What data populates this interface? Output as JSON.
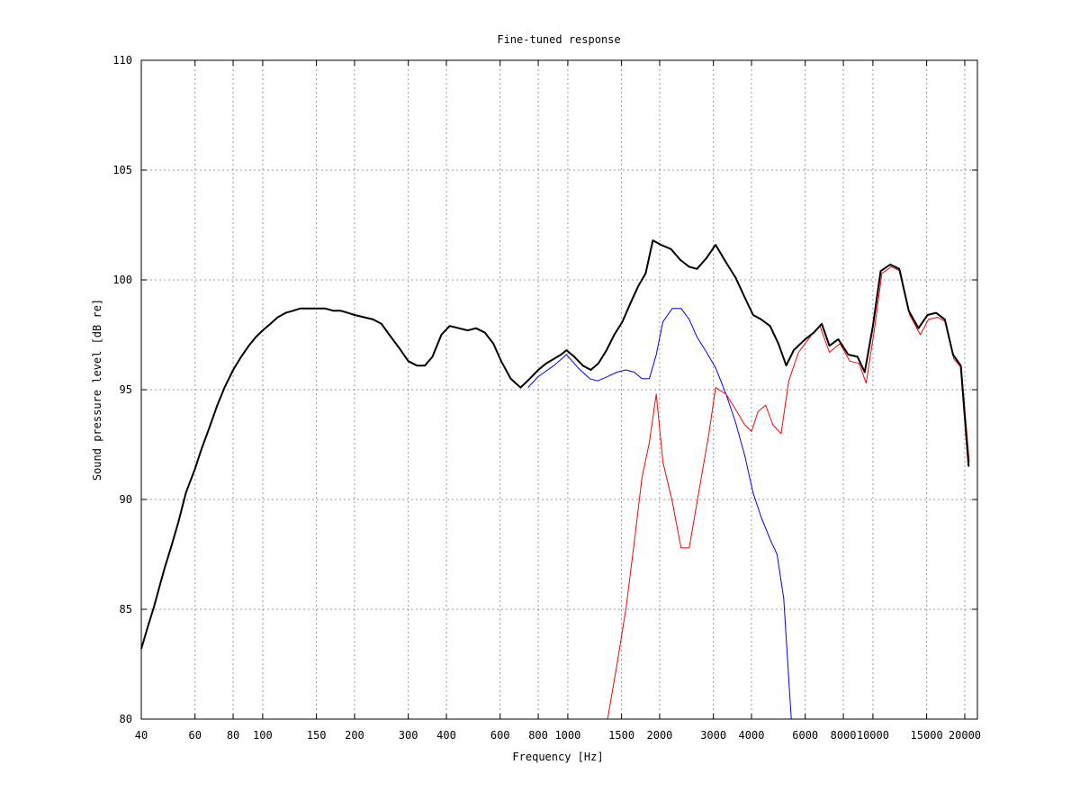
{
  "chart_data": {
    "type": "line",
    "title": "Fine-tuned response",
    "xlabel": "Frequency [Hz]",
    "ylabel": "Sound pressure level [dB re]",
    "xscale": "log",
    "xlim": [
      40,
      22000
    ],
    "ylim": [
      80,
      110
    ],
    "grid": true,
    "xticks": [
      40,
      60,
      80,
      100,
      150,
      200,
      300,
      400,
      600,
      800,
      1000,
      1500,
      2000,
      3000,
      4000,
      6000,
      8000,
      10000,
      15000,
      20000
    ],
    "xtick_labels": [
      "40",
      "60",
      "80",
      "100",
      "150",
      "200",
      "300",
      "400",
      "600",
      "800",
      "1000",
      "1500",
      "2000",
      "3000",
      "4000",
      "6000",
      "8000",
      "10000",
      "15000",
      "20000"
    ],
    "yticks": [
      80,
      85,
      90,
      95,
      100,
      105,
      110
    ],
    "ytick_labels": [
      "80",
      "85",
      "90",
      "95",
      "100",
      "105",
      "110"
    ],
    "series": [
      {
        "color": "#0000ff",
        "width": 1,
        "points": [
          [
            740,
            95.1
          ],
          [
            800,
            95.6
          ],
          [
            900,
            96.1
          ],
          [
            990,
            96.6
          ],
          [
            1080,
            96.0
          ],
          [
            1180,
            95.5
          ],
          [
            1250,
            95.4
          ],
          [
            1350,
            95.6
          ],
          [
            1450,
            95.8
          ],
          [
            1550,
            95.9
          ],
          [
            1650,
            95.8
          ],
          [
            1750,
            95.5
          ],
          [
            1850,
            95.5
          ],
          [
            1950,
            96.6
          ],
          [
            2050,
            98.1
          ],
          [
            2200,
            98.7
          ],
          [
            2350,
            98.7
          ],
          [
            2500,
            98.2
          ],
          [
            2650,
            97.4
          ],
          [
            2850,
            96.7
          ],
          [
            3050,
            96.0
          ],
          [
            3300,
            94.8
          ],
          [
            3550,
            93.5
          ],
          [
            3800,
            92.0
          ],
          [
            4050,
            90.3
          ],
          [
            4300,
            89.2
          ],
          [
            4600,
            88.2
          ],
          [
            4850,
            87.5
          ],
          [
            5100,
            85.5
          ],
          [
            5400,
            80.0
          ]
        ]
      },
      {
        "color": "#ff0000",
        "width": 1,
        "points": [
          [
            1350,
            80.0
          ],
          [
            1450,
            82.5
          ],
          [
            1550,
            85.0
          ],
          [
            1650,
            88.0
          ],
          [
            1750,
            91.0
          ],
          [
            1850,
            92.6
          ],
          [
            1950,
            94.8
          ],
          [
            2050,
            91.7
          ],
          [
            2200,
            89.9
          ],
          [
            2350,
            87.8
          ],
          [
            2500,
            87.8
          ],
          [
            2700,
            90.5
          ],
          [
            2900,
            93.0
          ],
          [
            3050,
            95.1
          ],
          [
            3300,
            94.8
          ],
          [
            3550,
            94.1
          ],
          [
            3800,
            93.4
          ],
          [
            4000,
            93.1
          ],
          [
            4200,
            94.0
          ],
          [
            4450,
            94.3
          ],
          [
            4700,
            93.4
          ],
          [
            5000,
            93.0
          ],
          [
            5300,
            95.4
          ],
          [
            5700,
            96.7
          ],
          [
            6300,
            97.5
          ],
          [
            6700,
            97.9
          ],
          [
            7200,
            96.7
          ],
          [
            7800,
            97.1
          ],
          [
            8400,
            96.3
          ],
          [
            9000,
            96.2
          ],
          [
            9500,
            95.3
          ],
          [
            10100,
            97.7
          ],
          [
            10700,
            100.3
          ],
          [
            11500,
            100.6
          ],
          [
            12300,
            100.4
          ],
          [
            13200,
            98.4
          ],
          [
            14300,
            97.5
          ],
          [
            15200,
            98.2
          ],
          [
            16300,
            98.3
          ],
          [
            17300,
            98.1
          ],
          [
            18400,
            96.4
          ],
          [
            19500,
            96.0
          ],
          [
            20700,
            91.7
          ]
        ]
      },
      {
        "color": "#000000",
        "width": 2,
        "points": [
          [
            40,
            83.2
          ],
          [
            42,
            84.2
          ],
          [
            44,
            85.1
          ],
          [
            46,
            86.1
          ],
          [
            48,
            87.0
          ],
          [
            50,
            87.8
          ],
          [
            53,
            89.0
          ],
          [
            56,
            90.3
          ],
          [
            60,
            91.4
          ],
          [
            63,
            92.3
          ],
          [
            67,
            93.3
          ],
          [
            71,
            94.3
          ],
          [
            75,
            95.1
          ],
          [
            80,
            95.9
          ],
          [
            85,
            96.5
          ],
          [
            90,
            97.0
          ],
          [
            95,
            97.4
          ],
          [
            100,
            97.7
          ],
          [
            106,
            98.0
          ],
          [
            112,
            98.3
          ],
          [
            119,
            98.5
          ],
          [
            126,
            98.6
          ],
          [
            133,
            98.7
          ],
          [
            140,
            98.7
          ],
          [
            150,
            98.7
          ],
          [
            160,
            98.7
          ],
          [
            170,
            98.6
          ],
          [
            180,
            98.6
          ],
          [
            190,
            98.5
          ],
          [
            200,
            98.4
          ],
          [
            215,
            98.3
          ],
          [
            230,
            98.2
          ],
          [
            245,
            98.0
          ],
          [
            260,
            97.5
          ],
          [
            280,
            96.9
          ],
          [
            300,
            96.3
          ],
          [
            320,
            96.1
          ],
          [
            340,
            96.1
          ],
          [
            360,
            96.5
          ],
          [
            385,
            97.5
          ],
          [
            410,
            97.9
          ],
          [
            440,
            97.8
          ],
          [
            470,
            97.7
          ],
          [
            500,
            97.8
          ],
          [
            535,
            97.6
          ],
          [
            570,
            97.1
          ],
          [
            605,
            96.3
          ],
          [
            650,
            95.5
          ],
          [
            700,
            95.1
          ],
          [
            750,
            95.5
          ],
          [
            800,
            95.9
          ],
          [
            850,
            96.2
          ],
          [
            900,
            96.4
          ],
          [
            950,
            96.6
          ],
          [
            990,
            96.8
          ],
          [
            1050,
            96.5
          ],
          [
            1120,
            96.1
          ],
          [
            1190,
            95.9
          ],
          [
            1260,
            96.2
          ],
          [
            1340,
            96.8
          ],
          [
            1420,
            97.5
          ],
          [
            1510,
            98.1
          ],
          [
            1600,
            98.9
          ],
          [
            1700,
            99.7
          ],
          [
            1800,
            100.3
          ],
          [
            1900,
            101.8
          ],
          [
            2020,
            101.6
          ],
          [
            2180,
            101.4
          ],
          [
            2340,
            100.9
          ],
          [
            2500,
            100.6
          ],
          [
            2650,
            100.5
          ],
          [
            2850,
            101.0
          ],
          [
            3050,
            101.6
          ],
          [
            3300,
            100.8
          ],
          [
            3550,
            100.1
          ],
          [
            3800,
            99.2
          ],
          [
            4050,
            98.4
          ],
          [
            4300,
            98.2
          ],
          [
            4600,
            97.9
          ],
          [
            4900,
            97.1
          ],
          [
            5200,
            96.1
          ],
          [
            5500,
            96.8
          ],
          [
            6000,
            97.3
          ],
          [
            6400,
            97.6
          ],
          [
            6800,
            98.0
          ],
          [
            7200,
            97.0
          ],
          [
            7700,
            97.3
          ],
          [
            8300,
            96.6
          ],
          [
            8900,
            96.5
          ],
          [
            9400,
            95.8
          ],
          [
            10000,
            97.9
          ],
          [
            10600,
            100.4
          ],
          [
            11400,
            100.7
          ],
          [
            12200,
            100.5
          ],
          [
            13100,
            98.6
          ],
          [
            14100,
            97.8
          ],
          [
            15100,
            98.4
          ],
          [
            16100,
            98.5
          ],
          [
            17200,
            98.2
          ],
          [
            18300,
            96.6
          ],
          [
            19400,
            96.1
          ],
          [
            20600,
            91.5
          ]
        ]
      }
    ]
  }
}
